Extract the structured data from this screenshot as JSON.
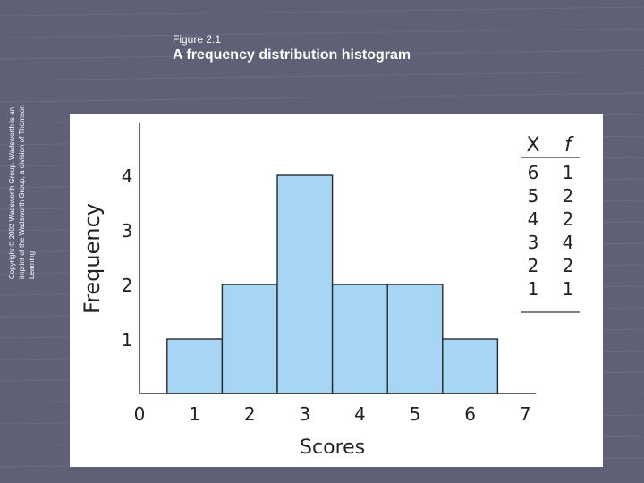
{
  "slide": {
    "figure_label": "Figure 2.1",
    "title": "A frequency distribution histogram",
    "copyright": "Copyright © 2002 Wadsworth Group. Wadsworth is an imprint of the Wadsworth Group, a division of Thomson Learning"
  },
  "chart_data": {
    "type": "bar",
    "categories": [
      "1",
      "2",
      "3",
      "4",
      "5",
      "6"
    ],
    "values": [
      1,
      2,
      4,
      2,
      2,
      1
    ],
    "xlabel": "Scores",
    "ylabel": "Frequency",
    "xticks": [
      "0",
      "1",
      "2",
      "3",
      "4",
      "5",
      "6",
      "7"
    ],
    "yticks": [
      "1",
      "2",
      "3",
      "4"
    ],
    "xlim": [
      0,
      7
    ],
    "ylim": [
      0,
      5
    ],
    "bar_color": "#a7d6f4",
    "grid": false,
    "table": {
      "headers": [
        "X",
        "f"
      ],
      "rows": [
        [
          "6",
          "1"
        ],
        [
          "5",
          "2"
        ],
        [
          "4",
          "2"
        ],
        [
          "3",
          "4"
        ],
        [
          "2",
          "2"
        ],
        [
          "1",
          "1"
        ]
      ]
    }
  }
}
